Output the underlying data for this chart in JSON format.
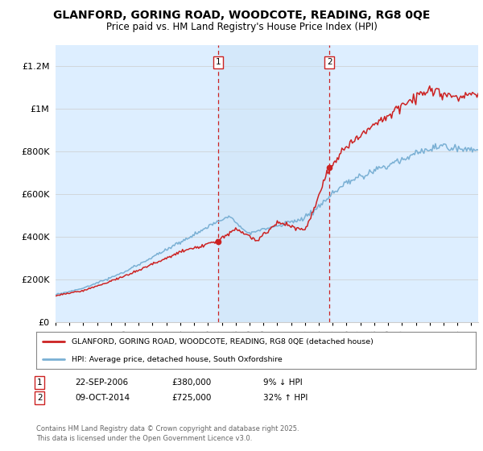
{
  "title": "GLANFORD, GORING ROAD, WOODCOTE, READING, RG8 0QE",
  "subtitle": "Price paid vs. HM Land Registry's House Price Index (HPI)",
  "ylabel_ticks": [
    "£0",
    "£200K",
    "£400K",
    "£600K",
    "£800K",
    "£1M",
    "£1.2M"
  ],
  "ytick_values": [
    0,
    200000,
    400000,
    600000,
    800000,
    1000000,
    1200000
  ],
  "ylim": [
    0,
    1300000
  ],
  "xlim_start": 1995,
  "xlim_end": 2025.5,
  "sale1_date": 2006.73,
  "sale1_price": 380000,
  "sale2_date": 2014.77,
  "sale2_price": 725000,
  "sale1_text": "22-SEP-2006",
  "sale1_amount": "£380,000",
  "sale1_hpi": "9% ↓ HPI",
  "sale2_text": "09-OCT-2014",
  "sale2_amount": "£725,000",
  "sale2_hpi": "32% ↑ HPI",
  "legend_line1": "GLANFORD, GORING ROAD, WOODCOTE, READING, RG8 0QE (detached house)",
  "legend_line2": "HPI: Average price, detached house, South Oxfordshire",
  "footer": "Contains HM Land Registry data © Crown copyright and database right 2025.\nThis data is licensed under the Open Government Licence v3.0.",
  "line_color_red": "#cc2222",
  "line_color_blue": "#7ab0d4",
  "bg_color": "#ddeeff",
  "bg_highlight": "#cce4f7",
  "plot_bg": "#ffffff",
  "grid_color": "#cccccc",
  "title_fontsize": 10,
  "subtitle_fontsize": 8.5
}
